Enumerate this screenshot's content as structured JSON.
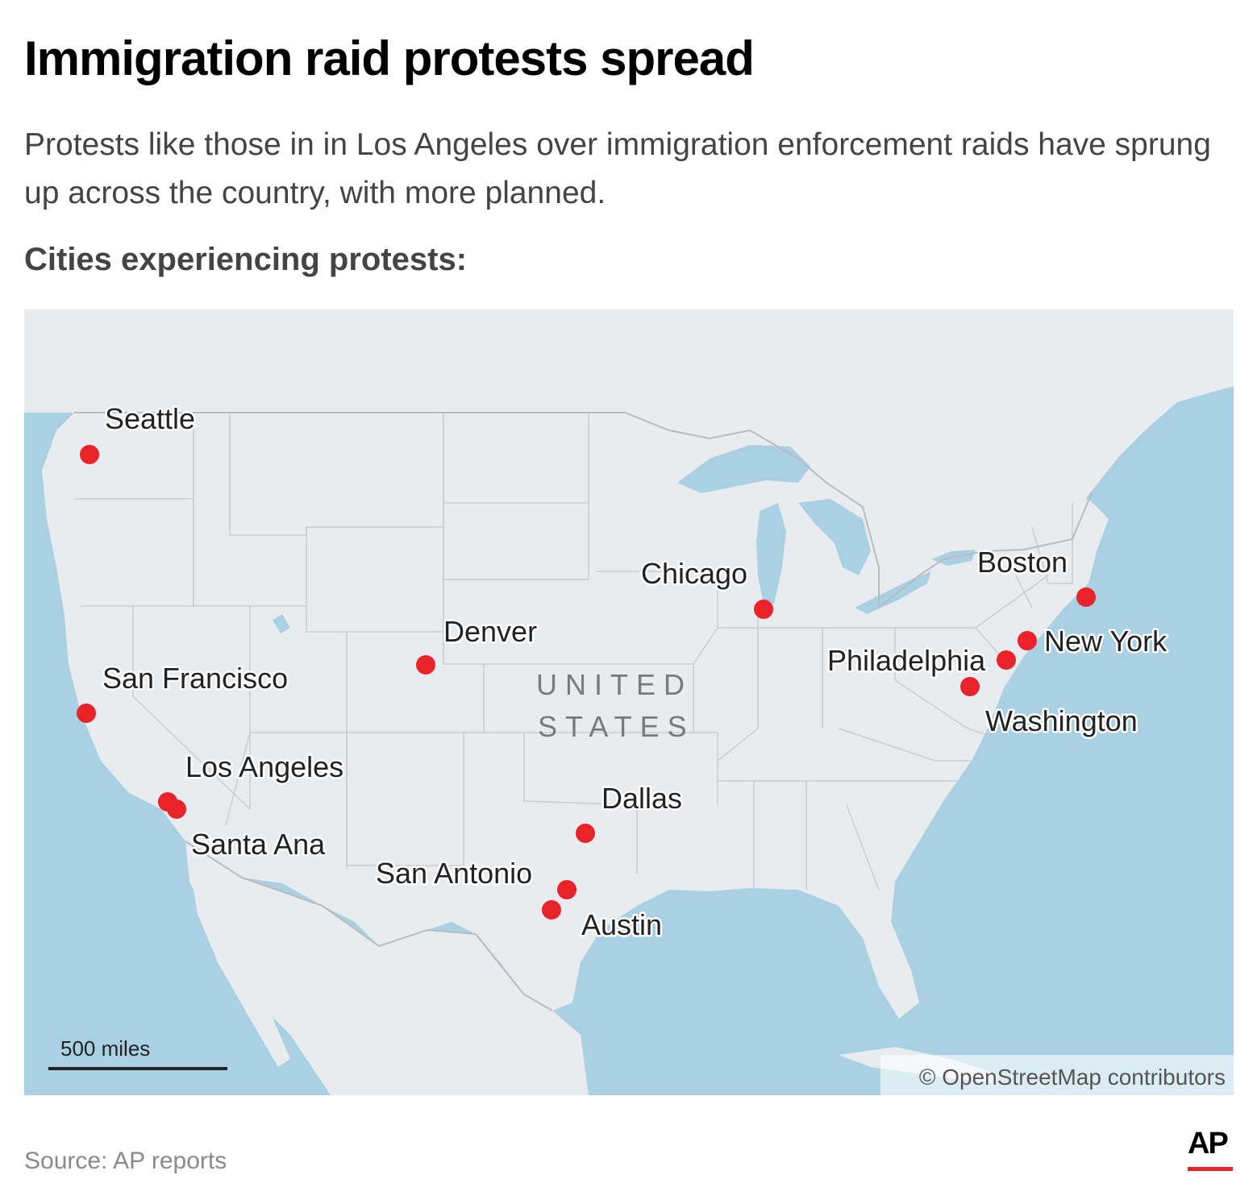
{
  "header": {
    "title": "Immigration raid protests spread",
    "subtitle": "Protests like those in in Los Angeles over immigration enforcement raids have sprung up across the country, with more planned.",
    "section_label": "Cities experiencing protests:"
  },
  "map": {
    "country_label_line1": "UNITED",
    "country_label_line2": "STATES",
    "scale_label": "500 miles",
    "attribution": "© OpenStreetMap contributors",
    "colors": {
      "water": "#a9d0e3",
      "land": "#e9ecee",
      "marker": "#e8242a",
      "borders": "#c9cdd1"
    },
    "cities": [
      {
        "name": "Seattle"
      },
      {
        "name": "San Francisco"
      },
      {
        "name": "Los Angeles"
      },
      {
        "name": "Santa Ana"
      },
      {
        "name": "Denver"
      },
      {
        "name": "Dallas"
      },
      {
        "name": "San Antonio"
      },
      {
        "name": "Austin"
      },
      {
        "name": "Chicago"
      },
      {
        "name": "Boston"
      },
      {
        "name": "New York"
      },
      {
        "name": "Philadelphia"
      },
      {
        "name": "Washington"
      }
    ]
  },
  "footer": {
    "source": "Source: AP reports",
    "logo": "AP"
  }
}
